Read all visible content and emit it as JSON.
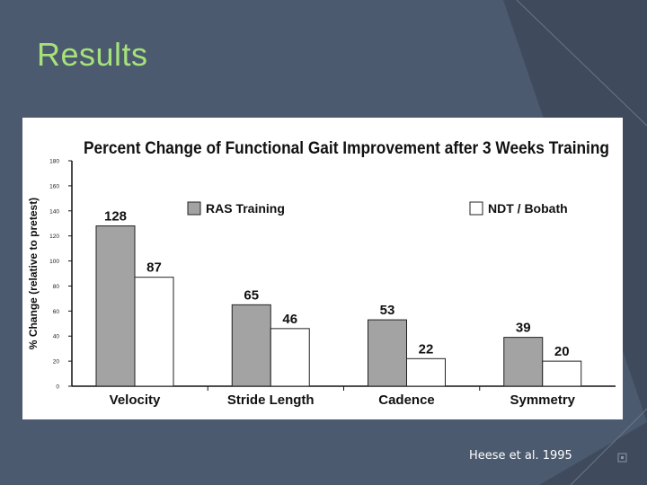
{
  "slide": {
    "title": "Results",
    "citation": "Heese et al. 1995",
    "colors": {
      "background": "#4b5a6e",
      "title": "#a6e27a",
      "accent_frame": "#3f4b5c"
    }
  },
  "chart_data": {
    "type": "bar",
    "title": "Percent Change of Functional Gait Improvement after 3 Weeks Training",
    "xlabel": "",
    "ylabel": "% Change (relative to pretest)",
    "categories": [
      "Velocity",
      "Stride Length",
      "Cadence",
      "Symmetry"
    ],
    "series": [
      {
        "name": "RAS Training",
        "values": [
          128,
          65,
          53,
          39
        ],
        "color": "#a3a3a3"
      },
      {
        "name": "NDT / Bobath",
        "values": [
          87,
          46,
          22,
          20
        ],
        "color": "#ffffff"
      }
    ],
    "ylim": [
      0,
      180
    ],
    "yticks": [
      "0",
      "20",
      "40",
      "60",
      "80",
      "100",
      "120",
      "140",
      "160",
      "180"
    ],
    "legend_position": "top",
    "grid": false
  }
}
